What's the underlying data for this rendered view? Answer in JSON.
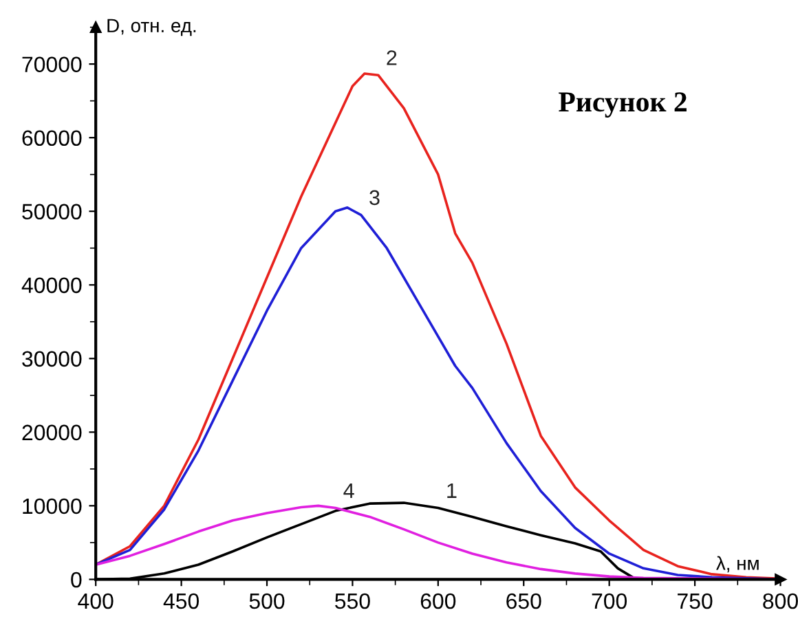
{
  "chart_data": {
    "type": "line",
    "title": "Рисунок 2",
    "xlabel": "λ, нм",
    "ylabel": "D, отн. ед.",
    "xlim": [
      400,
      800
    ],
    "ylim": [
      0,
      75000
    ],
    "xticks": [
      400,
      450,
      500,
      550,
      600,
      650,
      700,
      750,
      800
    ],
    "yticks": [
      0,
      10000,
      20000,
      30000,
      40000,
      50000,
      60000,
      70000
    ],
    "grid": false,
    "marker": "none",
    "line_style": "solid",
    "series": [
      {
        "name": "1",
        "color": "#000000",
        "x": [
          400,
          420,
          440,
          460,
          480,
          500,
          520,
          540,
          560,
          580,
          600,
          620,
          640,
          660,
          680,
          695,
          705,
          715,
          730,
          800
        ],
        "values": [
          0,
          100,
          800,
          2000,
          3800,
          5700,
          7500,
          9300,
          10300,
          10400,
          9700,
          8500,
          7200,
          6000,
          4900,
          3800,
          1500,
          100,
          0,
          0
        ]
      },
      {
        "name": "2",
        "color": "#e8231e",
        "x": [
          400,
          420,
          440,
          460,
          480,
          500,
          520,
          540,
          550,
          557,
          565,
          580,
          600,
          610,
          620,
          640,
          660,
          680,
          700,
          720,
          740,
          760,
          780,
          800
        ],
        "values": [
          2000,
          4500,
          10000,
          19000,
          30000,
          41000,
          52000,
          62000,
          67000,
          68700,
          68500,
          64000,
          55000,
          47000,
          43000,
          32000,
          19500,
          12500,
          8000,
          4000,
          1800,
          700,
          300,
          100
        ]
      },
      {
        "name": "3",
        "color": "#1f1fd6",
        "x": [
          400,
          420,
          440,
          460,
          480,
          500,
          520,
          540,
          547,
          555,
          570,
          590,
          610,
          620,
          640,
          660,
          680,
          700,
          720,
          740,
          760,
          800
        ],
        "values": [
          2000,
          4000,
          9500,
          17500,
          27000,
          36500,
          45000,
          50000,
          50500,
          49500,
          45000,
          37000,
          29000,
          26000,
          18500,
          12000,
          7000,
          3500,
          1500,
          600,
          300,
          0
        ]
      },
      {
        "name": "4",
        "color": "#e020e0",
        "x": [
          400,
          420,
          440,
          460,
          480,
          500,
          520,
          530,
          540,
          560,
          580,
          600,
          620,
          640,
          660,
          680,
          700,
          720,
          760,
          800
        ],
        "values": [
          2000,
          3200,
          4800,
          6500,
          8000,
          9000,
          9800,
          10000,
          9700,
          8500,
          6800,
          5000,
          3500,
          2300,
          1400,
          800,
          400,
          200,
          100,
          0
        ]
      }
    ]
  }
}
